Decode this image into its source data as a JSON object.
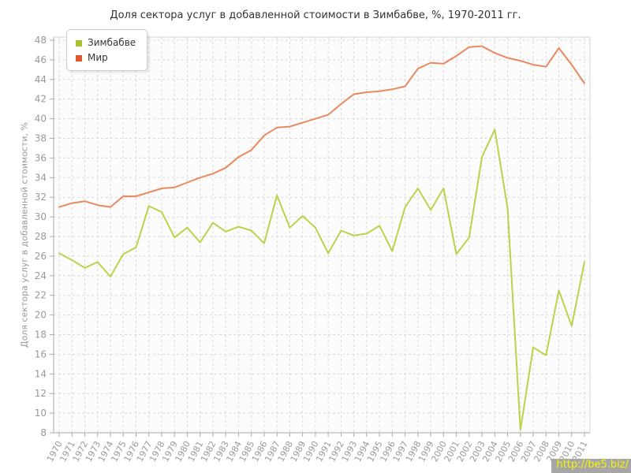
{
  "title": "Доля сектора услуг в добавленной стоимости в Зимбабве, %, 1970-2011 гг.",
  "watermark": "http://be5.biz/",
  "colors": {
    "plot_background": "#fcfcfc",
    "grid": "#dadada",
    "plot_border": "#d6d6d6",
    "axis": "#a9a9a9",
    "tick_label": "#999999",
    "title_text": "#333333"
  },
  "chart_data": {
    "type": "line",
    "title": "Доля сектора услуг в добавленной стоимости в Зимбабве, %, 1970-2011 гг.",
    "xlabel": "",
    "ylabel": "Доля сектора услуг в добавленной стоимости, %",
    "ylim": [
      8,
      48
    ],
    "ytick_step": 2,
    "grid": true,
    "grid_style": "dashed",
    "legend_position": "top-left",
    "x": [
      1970,
      1971,
      1972,
      1973,
      1974,
      1975,
      1976,
      1977,
      1978,
      1979,
      1980,
      1981,
      1982,
      1983,
      1984,
      1985,
      1986,
      1987,
      1988,
      1989,
      1990,
      1991,
      1992,
      1993,
      1994,
      1995,
      1996,
      1997,
      1998,
      1999,
      2000,
      2001,
      2002,
      2003,
      2004,
      2005,
      2006,
      2007,
      2008,
      2009,
      2010,
      2011
    ],
    "series": [
      {
        "name": "Зимбабве",
        "color": "#bdd14b",
        "legend_color": "#a9c32a",
        "values": [
          26.3,
          25.6,
          24.8,
          25.4,
          23.9,
          26.2,
          26.9,
          31.1,
          30.5,
          27.9,
          28.9,
          27.4,
          29.4,
          28.5,
          29.0,
          28.6,
          27.3,
          32.2,
          28.9,
          30.1,
          28.9,
          26.3,
          28.6,
          28.1,
          28.3,
          29.1,
          26.5,
          31.0,
          32.9,
          30.7,
          32.9,
          26.2,
          27.9,
          36.1,
          38.9,
          30.9,
          8.3,
          16.7,
          15.9,
          22.5,
          18.9,
          25.4
        ]
      },
      {
        "name": "Мир",
        "color": "#e98960",
        "legend_color": "#e0592d",
        "values": [
          31.0,
          31.4,
          31.6,
          31.2,
          31.0,
          32.1,
          32.1,
          32.5,
          32.9,
          33.0,
          33.5,
          34.0,
          34.4,
          35.0,
          36.1,
          36.8,
          38.3,
          39.1,
          39.2,
          39.6,
          40.0,
          40.4,
          41.5,
          42.5,
          42.7,
          42.8,
          43.0,
          43.3,
          45.1,
          45.7,
          45.6,
          46.4,
          47.3,
          47.4,
          46.7,
          46.2,
          45.9,
          45.5,
          45.3,
          47.2,
          45.5,
          43.6
        ]
      }
    ]
  }
}
